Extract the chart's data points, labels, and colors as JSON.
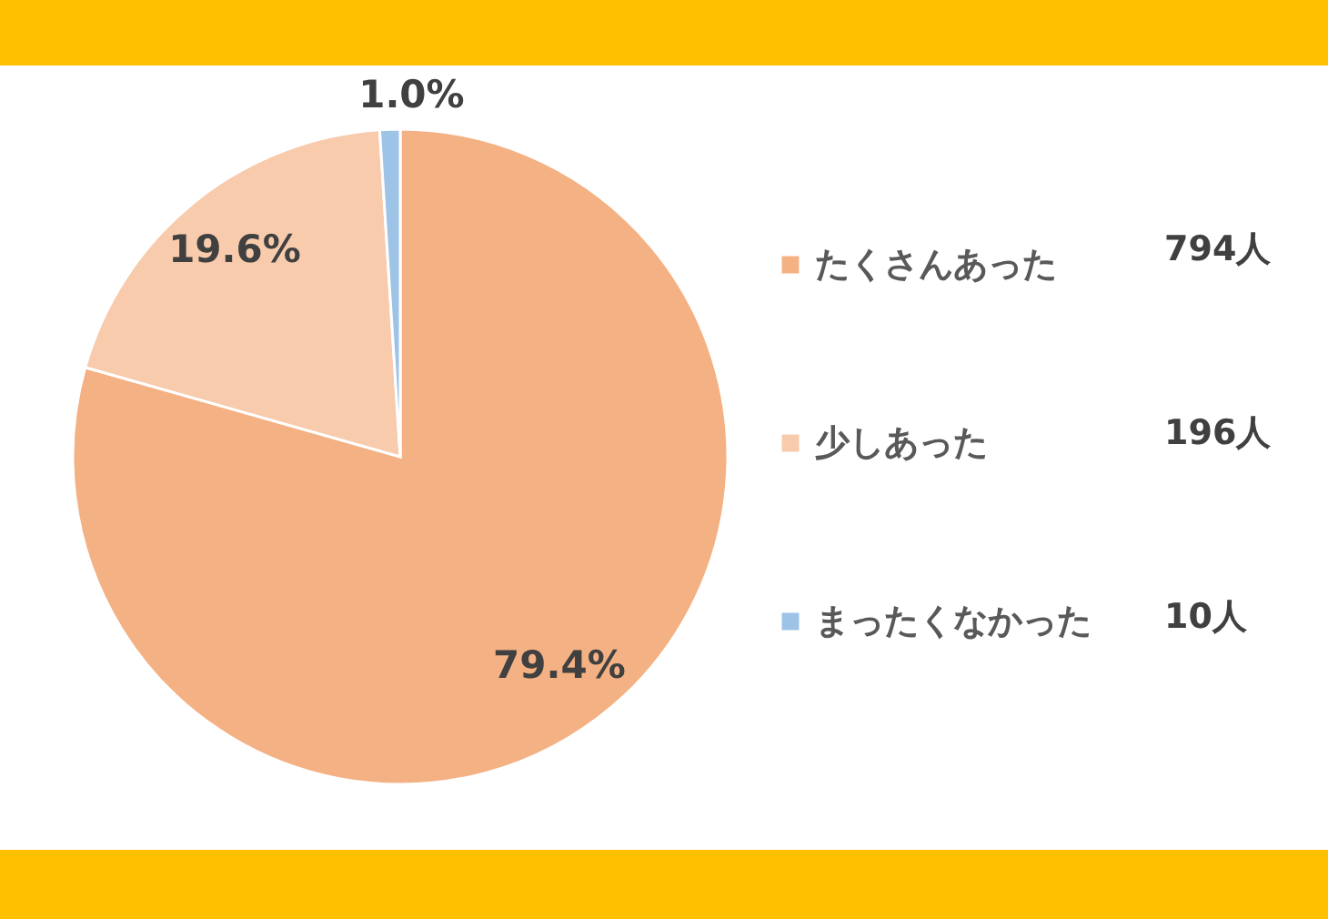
{
  "chart_data": {
    "type": "pie",
    "categories": [
      "たくさんあった",
      "少しあった",
      "まったくなかった"
    ],
    "values": [
      79.4,
      19.6,
      1.0
    ],
    "value_labels": [
      "79.4%",
      "19.6%",
      "1.0%"
    ],
    "colors": [
      "#f4b183",
      "#f8cbad",
      "#9dc3e6"
    ],
    "legend": "right",
    "annotations": [
      "794人",
      "196人",
      "10人"
    ]
  }
}
